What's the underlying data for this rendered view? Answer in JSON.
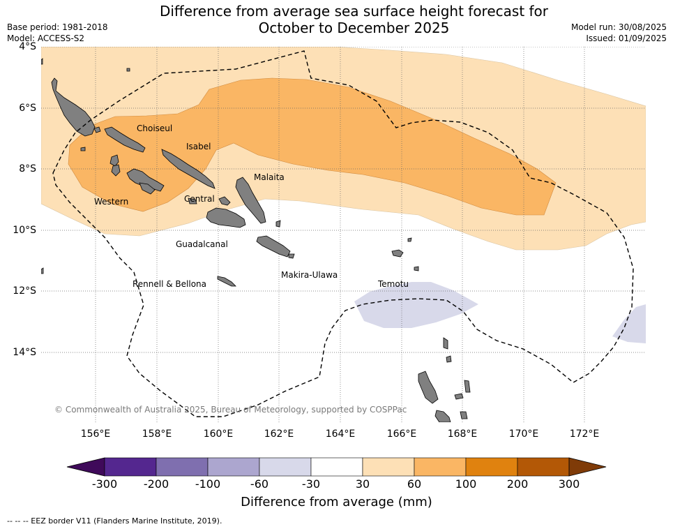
{
  "header": {
    "title_line1": "Difference from average sea surface height forecast for",
    "title_line2": "October to December 2025",
    "base_period": "Base period: 1981-2018",
    "model": "Model: ACCESS-S2",
    "model_run": "Model run: 30/08/2025",
    "issued": "Issued: 01/09/2025"
  },
  "map": {
    "lat_labels": [
      "4°S",
      "6°S",
      "8°S",
      "10°S",
      "12°S",
      "14°S"
    ],
    "lon_labels": [
      "156°E",
      "158°E",
      "160°E",
      "162°E",
      "164°E",
      "166°E",
      "168°E",
      "170°E",
      "172°E"
    ],
    "provinces": {
      "choiseul": "Choiseul",
      "isabel": "Isabel",
      "malaita": "Malaita",
      "western": "Western",
      "central": "Central",
      "guadalcanal": "Guadalcanal",
      "makira": "Makira-Ulawa",
      "rennell": "Rennell & Bellona",
      "temotu": "Temotu"
    },
    "credit": "© Commonwealth of Australia 2025, Bureau of Meteorology, supported by COSPPac",
    "colors": {
      "land": "#808080",
      "band_30_60": "#fde0b6",
      "band_60_100": "#fab664",
      "band_neg60_neg30": "#d8d9ea"
    }
  },
  "colorbar": {
    "ticks": [
      "-300",
      "-200",
      "-100",
      "-60",
      "-30",
      "30",
      "60",
      "100",
      "200",
      "300"
    ],
    "colors": [
      "#3f0a5a",
      "#54278f",
      "#7f6faf",
      "#aca6cf",
      "#d8d9ea",
      "#ffffff",
      "#fde0b6",
      "#fab664",
      "#e0820f",
      "#b35806",
      "#7f3b08"
    ],
    "title": "Difference from average (mm)"
  },
  "footer": {
    "eez_note": "--  --  -- EEZ border V11 (Flanders Marine Institute, 2019)."
  }
}
